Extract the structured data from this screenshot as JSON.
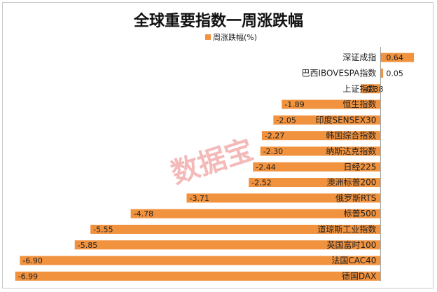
{
  "chart_data": {
    "type": "bar",
    "orientation": "horizontal",
    "title": "全球重要指数一周涨跌幅",
    "legend": {
      "position": "top",
      "label": "周涨跌幅(%)"
    },
    "xlim": [
      -7.2,
      1.0
    ],
    "grid": false,
    "color": "#f0923e",
    "categories": [
      "深证成指",
      "巴西IBOVESPA指数",
      "上证指数",
      "恒生指数",
      "印度SENSEX30",
      "韩国综合指数",
      "纳斯达克指数",
      "日经225",
      "澳洲标普200",
      "俄罗斯RTS",
      "标普500",
      "道琼斯工业指数",
      "英国富时100",
      "法国CAC40",
      "德国DAX"
    ],
    "value_labels": [
      "0.64",
      "0.05",
      "-0.38",
      "-1.89",
      "-2.05",
      "-2.27",
      "-2.30",
      "-2.44",
      "-2.52",
      "-3.71",
      "-4.78",
      "-5.55",
      "-5.85",
      "-6.90",
      "-6.99"
    ],
    "values": [
      0.64,
      0.05,
      -0.38,
      -1.89,
      -2.05,
      -2.27,
      -2.3,
      -2.44,
      -2.52,
      -3.71,
      -4.78,
      -5.55,
      -5.85,
      -6.9,
      -6.99
    ]
  },
  "watermark": "数据宝"
}
